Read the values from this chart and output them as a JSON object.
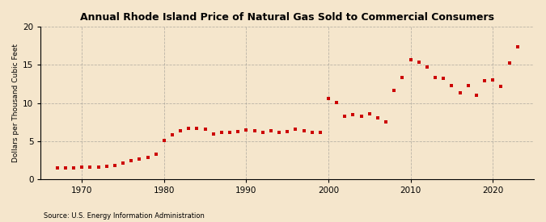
{
  "title": "Annual Rhode Island Price of Natural Gas Sold to Commercial Consumers",
  "ylabel": "Dollars per Thousand Cubic Feet",
  "source": "Source: U.S. Energy Information Administration",
  "background_color": "#f5e6cc",
  "plot_bg_color": "#f5e6cc",
  "marker_color": "#cc0000",
  "years": [
    1967,
    1968,
    1969,
    1970,
    1971,
    1972,
    1973,
    1974,
    1975,
    1976,
    1977,
    1978,
    1979,
    1980,
    1981,
    1982,
    1983,
    1984,
    1985,
    1986,
    1987,
    1988,
    1989,
    1990,
    1991,
    1992,
    1993,
    1994,
    1995,
    1996,
    1997,
    1998,
    1999,
    2000,
    2001,
    2002,
    2003,
    2004,
    2005,
    2006,
    2007,
    2008,
    2009,
    2010,
    2011,
    2012,
    2013,
    2014,
    2015,
    2016,
    2017,
    2018,
    2019,
    2020,
    2021,
    2022,
    2023
  ],
  "values": [
    1.45,
    1.47,
    1.5,
    1.55,
    1.57,
    1.58,
    1.62,
    1.8,
    2.1,
    2.4,
    2.65,
    2.8,
    3.25,
    5.1,
    5.8,
    6.3,
    6.7,
    6.7,
    6.55,
    5.9,
    6.1,
    6.15,
    6.2,
    6.4,
    6.3,
    6.1,
    6.3,
    6.1,
    6.2,
    6.6,
    6.35,
    6.1,
    6.1,
    10.6,
    10.1,
    8.3,
    8.5,
    8.3,
    8.55,
    8.0,
    7.55,
    11.65,
    13.4,
    15.7,
    15.4,
    14.7,
    13.3,
    13.2,
    12.3,
    11.3,
    12.3,
    11.05,
    12.95,
    13.05,
    12.2,
    15.3,
    17.4
  ],
  "xlim": [
    1965,
    2025
  ],
  "ylim": [
    0,
    20
  ],
  "yticks": [
    0,
    5,
    10,
    15,
    20
  ],
  "xticks": [
    1970,
    1980,
    1990,
    2000,
    2010,
    2020
  ]
}
